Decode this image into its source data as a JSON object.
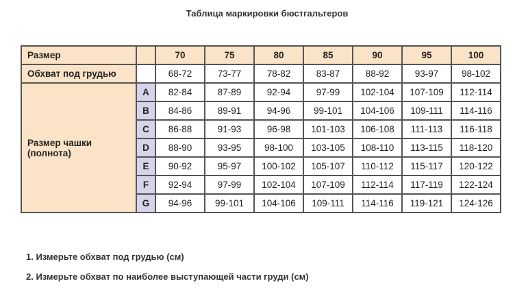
{
  "title": "Таблица маркировки бюстгальтеров",
  "table": {
    "size_label": "Размер",
    "sizes": [
      "70",
      "75",
      "80",
      "85",
      "90",
      "95",
      "100"
    ],
    "underbust_label": "Обхват под грудью",
    "underbust": [
      "68-72",
      "73-77",
      "78-82",
      "83-87",
      "88-92",
      "93-97",
      "98-102"
    ],
    "cup_label": "Размер чашки (полнота)",
    "cups": [
      {
        "letter": "A",
        "values": [
          "82-84",
          "87-89",
          "92-94",
          "97-99",
          "102-104",
          "107-109",
          "112-114"
        ]
      },
      {
        "letter": "B",
        "values": [
          "84-86",
          "89-91",
          "94-96",
          "99-101",
          "104-106",
          "109-111",
          "114-116"
        ]
      },
      {
        "letter": "C",
        "values": [
          "86-88",
          "91-93",
          "96-98",
          "101-103",
          "106-108",
          "111-113",
          "116-118"
        ]
      },
      {
        "letter": "D",
        "values": [
          "88-90",
          "93-95",
          "98-100",
          "103-105",
          "108-110",
          "113-115",
          "118-120"
        ]
      },
      {
        "letter": "E",
        "values": [
          "90-92",
          "95-97",
          "100-102",
          "105-107",
          "110-112",
          "115-117",
          "120-122"
        ]
      },
      {
        "letter": "F",
        "values": [
          "92-94",
          "97-99",
          "102-104",
          "107-109",
          "112-114",
          "117-119",
          "122-124"
        ]
      },
      {
        "letter": "G",
        "values": [
          "94-96",
          "99-101",
          "104-106",
          "109-111",
          "114-116",
          "119-121",
          "124-126"
        ]
      }
    ]
  },
  "notes": [
    "1. Измерьте обхват под грудью (см)",
    "2. Измерьте обхват по наиболее выступающей части груди (см)"
  ],
  "colors": {
    "header": "#fbe3c7",
    "cup_letter": "#d8d2ea"
  }
}
